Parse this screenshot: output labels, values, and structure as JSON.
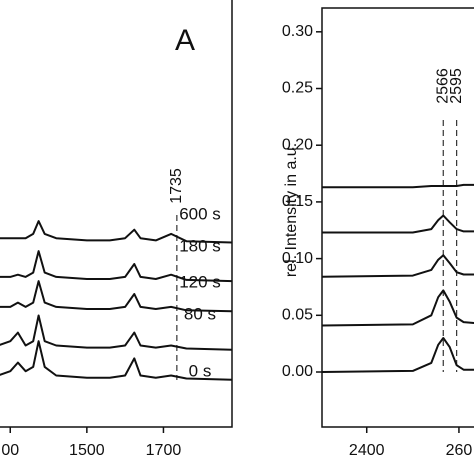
{
  "chart_data": [
    {
      "type": "line",
      "panel_label": "A",
      "xlim": [
        1268,
        1879
      ],
      "ylim": [
        0,
        100
      ],
      "xticks": [
        {
          "value": 1300,
          "label": "00"
        },
        1500,
        1700
      ],
      "marker_lines": [
        {
          "value": 1735,
          "label": "1735"
        }
      ],
      "x": [
        1268,
        1300,
        1320,
        1340,
        1360,
        1374,
        1390,
        1420,
        1500,
        1560,
        1600,
        1624,
        1640,
        1680,
        1720,
        1760,
        1879
      ],
      "series": [
        {
          "name": "600 s",
          "color": "#111111",
          "values": [
            44,
            44,
            44,
            44,
            45,
            48,
            45,
            44,
            43.5,
            43.5,
            44,
            46,
            44,
            43.5,
            45,
            43.3,
            43
          ]
        },
        {
          "name": "180 s",
          "color": "#111111",
          "values": [
            35,
            35,
            35.5,
            35,
            36,
            41,
            36,
            35,
            34.5,
            34.5,
            35,
            38,
            35,
            34.5,
            35.5,
            34.3,
            34
          ]
        },
        {
          "name": "120 s",
          "color": "#111111",
          "values": [
            28,
            28,
            29,
            28,
            29,
            34,
            29,
            28,
            27.5,
            27.5,
            28,
            31,
            28,
            27.5,
            28,
            27.2,
            27
          ]
        },
        {
          "name": "80 s",
          "color": "#111111",
          "values": [
            19,
            20,
            22,
            19,
            20,
            26,
            20,
            19,
            18.5,
            18.5,
            19,
            22,
            19,
            18.5,
            19,
            18.3,
            18
          ]
        },
        {
          "name": "0 s",
          "color": "#111111",
          "values": [
            12,
            13,
            15,
            13,
            14,
            20,
            14,
            12,
            11.5,
            11.5,
            12,
            16,
            12,
            11.5,
            12,
            11.3,
            11
          ]
        }
      ]
    },
    {
      "type": "line",
      "ylabel": "rel. Intensity in a.u.",
      "xlim": [
        2303,
        2637
      ],
      "ylim": [
        -0.0485,
        0.321
      ],
      "xticks": [
        2400,
        {
          "value": 2600,
          "label": "260"
        }
      ],
      "yticks": [
        {
          "value": 0,
          "label": "0.00"
        },
        {
          "value": 0.05,
          "label": "0.05"
        },
        {
          "value": 0.1,
          "label": "0.10"
        },
        {
          "value": 0.15,
          "label": "0.15"
        },
        {
          "value": 0.2,
          "label": "0.20"
        },
        {
          "value": 0.25,
          "label": "0.25"
        },
        {
          "value": 0.3,
          "label": "0.30"
        }
      ],
      "marker_lines": [
        {
          "value": 2566,
          "label": "2566"
        },
        {
          "value": 2595,
          "label": "2595"
        }
      ],
      "x": [
        2303,
        2500,
        2540,
        2555,
        2566,
        2580,
        2595,
        2610,
        2637
      ],
      "series": [
        {
          "color": "#111111",
          "values": [
            0.163,
            0.163,
            0.164,
            0.164,
            0.164,
            0.164,
            0.164,
            0.165,
            0.165
          ]
        },
        {
          "color": "#111111",
          "values": [
            0.123,
            0.123,
            0.126,
            0.134,
            0.138,
            0.132,
            0.126,
            0.124,
            0.124
          ]
        },
        {
          "color": "#111111",
          "values": [
            0.084,
            0.085,
            0.09,
            0.099,
            0.103,
            0.096,
            0.088,
            0.086,
            0.086
          ]
        },
        {
          "color": "#111111",
          "values": [
            0.041,
            0.042,
            0.05,
            0.066,
            0.072,
            0.062,
            0.048,
            0.044,
            0.043
          ]
        },
        {
          "color": "#111111",
          "values": [
            0.0,
            0.001,
            0.008,
            0.024,
            0.03,
            0.022,
            0.006,
            0.002,
            0.002
          ]
        }
      ]
    }
  ]
}
